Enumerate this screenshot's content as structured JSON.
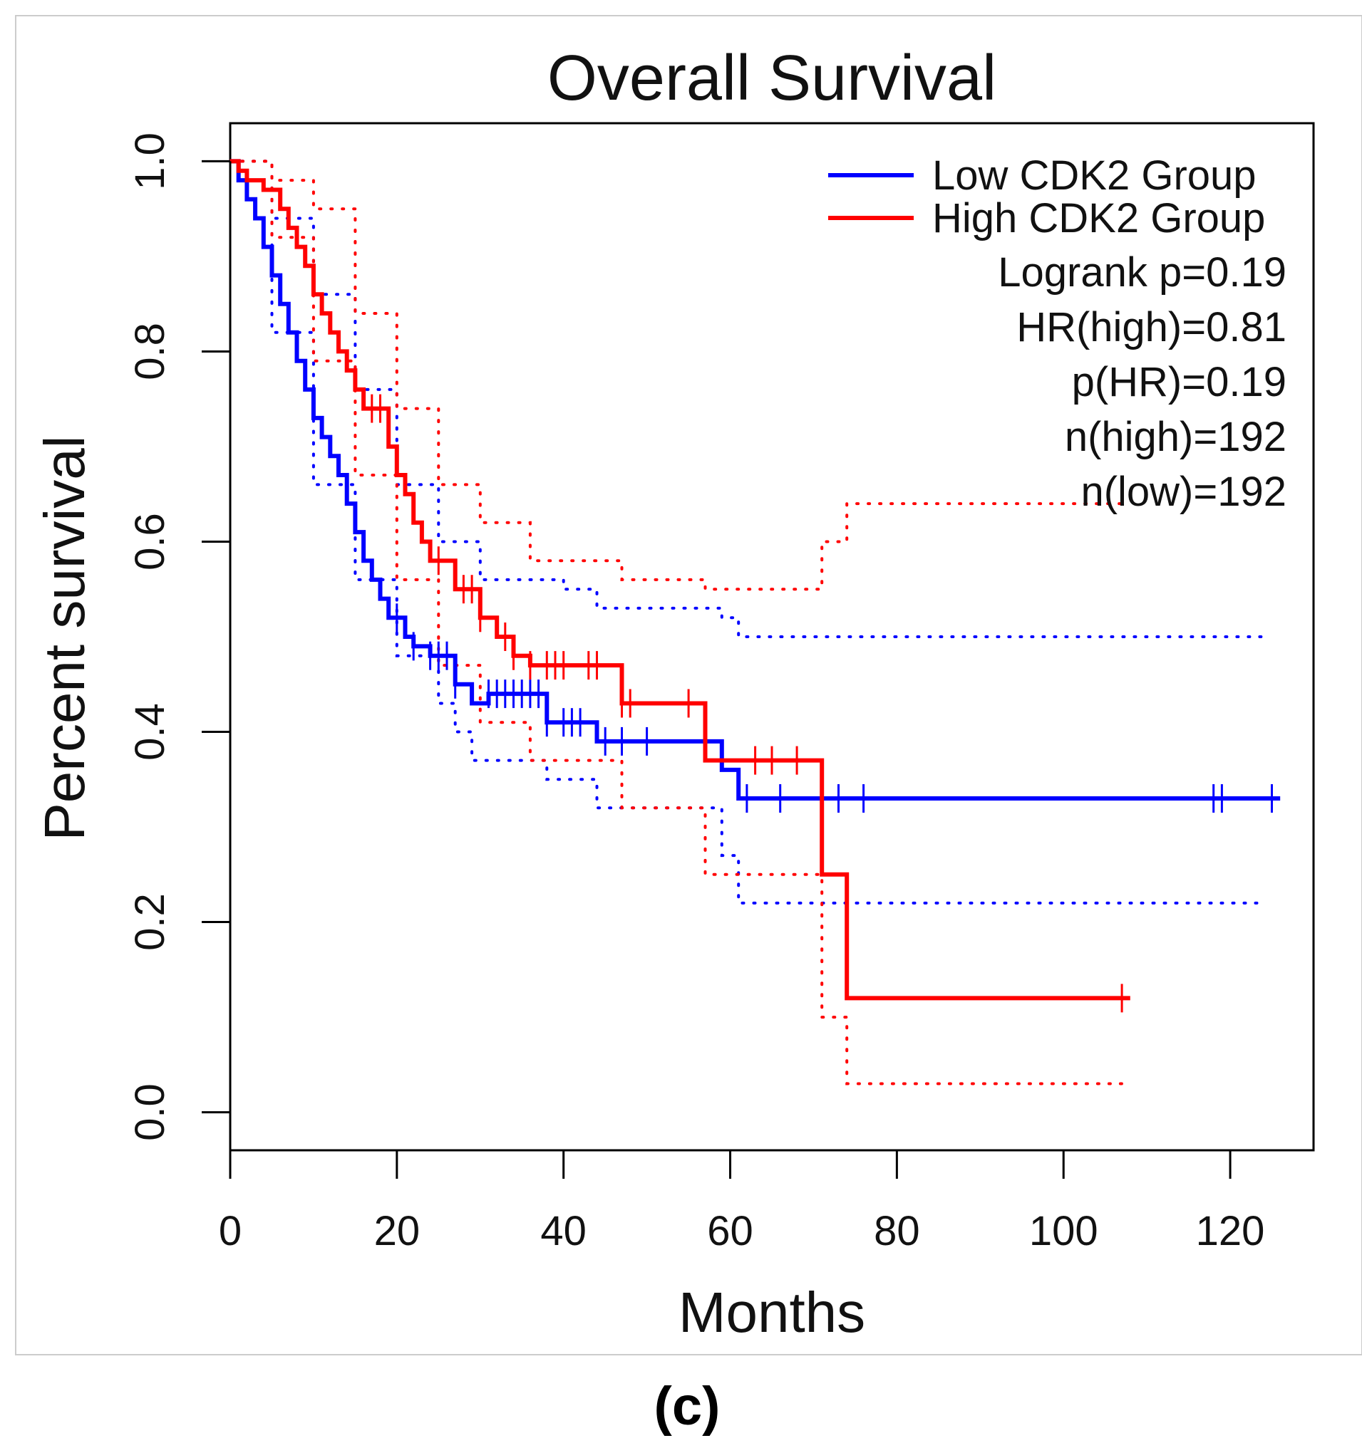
{
  "chart_data": {
    "type": "line",
    "subtype": "kaplan-meier",
    "title": "Overall Survival",
    "xlabel": "Months",
    "ylabel": "Percent survival",
    "xlim": [
      0,
      130
    ],
    "ylim": [
      -0.04,
      1.04
    ],
    "x_ticks": [
      0,
      20,
      40,
      60,
      80,
      100,
      120
    ],
    "y_ticks": [
      0.0,
      0.2,
      0.4,
      0.6,
      0.8,
      1.0
    ],
    "x_tick_labels": [
      "0",
      "20",
      "40",
      "60",
      "80",
      "100",
      "120"
    ],
    "y_tick_labels": [
      "0.0",
      "0.2",
      "0.4",
      "0.6",
      "0.8",
      "1.0"
    ],
    "legend": {
      "position": "top-right",
      "entries": [
        {
          "label": "Low CDK2 Group",
          "color": "#0000ff"
        },
        {
          "label": "High CDK2 Group",
          "color": "#ff0000"
        }
      ],
      "stats": [
        "Logrank p=0.19",
        "HR(high)=0.81",
        "p(HR)=0.19",
        "n(high)=192",
        "n(low)=192"
      ]
    },
    "series": [
      {
        "name": "Low CDK2 Group",
        "color": "#0000ff",
        "style": "solid",
        "x": [
          0,
          1,
          2,
          3,
          4,
          5,
          6,
          7,
          8,
          9,
          10,
          11,
          12,
          13,
          14,
          15,
          16,
          17,
          18,
          19,
          21,
          22,
          24,
          27,
          29,
          31,
          38,
          44,
          59,
          61,
          126
        ],
        "y": [
          1.0,
          0.98,
          0.96,
          0.94,
          0.91,
          0.88,
          0.85,
          0.82,
          0.79,
          0.76,
          0.73,
          0.71,
          0.69,
          0.67,
          0.64,
          0.61,
          0.58,
          0.56,
          0.54,
          0.52,
          0.5,
          0.49,
          0.48,
          0.45,
          0.43,
          0.44,
          0.41,
          0.39,
          0.36,
          0.33,
          0.33
        ],
        "censor_x": [
          20,
          22,
          24,
          25,
          26,
          27,
          31,
          32,
          33,
          34,
          35,
          36,
          37,
          38,
          40,
          41,
          42,
          45,
          47,
          50,
          62,
          66,
          73,
          76,
          118,
          119,
          125
        ]
      },
      {
        "name": "High CDK2 Group",
        "color": "#ff0000",
        "style": "solid",
        "x": [
          0,
          1,
          2,
          4,
          6,
          7,
          8,
          9,
          10,
          11,
          12,
          13,
          14,
          15,
          16,
          19,
          20,
          21,
          22,
          23,
          24,
          27,
          30,
          32,
          34,
          36,
          47,
          57,
          71,
          74,
          108
        ],
        "y": [
          1.0,
          0.99,
          0.98,
          0.97,
          0.95,
          0.93,
          0.91,
          0.89,
          0.86,
          0.84,
          0.82,
          0.8,
          0.78,
          0.76,
          0.74,
          0.7,
          0.67,
          0.65,
          0.62,
          0.6,
          0.58,
          0.55,
          0.52,
          0.5,
          0.48,
          0.47,
          0.43,
          0.37,
          0.25,
          0.12,
          0.12
        ],
        "censor_x": [
          17,
          18,
          25,
          28,
          29,
          30,
          33,
          34,
          36,
          38,
          39,
          40,
          43,
          44,
          47,
          48,
          55,
          63,
          65,
          68,
          107
        ]
      },
      {
        "name": "Low CDK2 Group upper CI",
        "color": "#0000ff",
        "style": "dotted",
        "x": [
          0,
          5,
          10,
          15,
          20,
          25,
          30,
          40,
          44,
          59,
          61,
          124
        ],
        "y": [
          1.0,
          0.94,
          0.86,
          0.76,
          0.66,
          0.6,
          0.56,
          0.55,
          0.53,
          0.52,
          0.5,
          0.5
        ]
      },
      {
        "name": "Low CDK2 Group lower CI",
        "color": "#0000ff",
        "style": "dotted",
        "x": [
          0,
          5,
          10,
          15,
          20,
          25,
          27,
          29,
          38,
          44,
          59,
          61,
          124
        ],
        "y": [
          1.0,
          0.82,
          0.66,
          0.56,
          0.48,
          0.43,
          0.4,
          0.37,
          0.35,
          0.32,
          0.27,
          0.22,
          0.22
        ]
      },
      {
        "name": "High CDK2 Group upper CI",
        "color": "#ff0000",
        "style": "dotted",
        "x": [
          0,
          5,
          10,
          15,
          20,
          25,
          30,
          36,
          47,
          57,
          71,
          74,
          107
        ],
        "y": [
          1.0,
          0.98,
          0.95,
          0.84,
          0.74,
          0.66,
          0.62,
          0.58,
          0.56,
          0.55,
          0.6,
          0.64,
          0.64
        ]
      },
      {
        "name": "High CDK2 Group lower CI",
        "color": "#ff0000",
        "style": "dotted",
        "x": [
          0,
          5,
          10,
          15,
          20,
          25,
          30,
          36,
          47,
          57,
          71,
          74,
          107
        ],
        "y": [
          1.0,
          0.92,
          0.79,
          0.67,
          0.56,
          0.47,
          0.41,
          0.37,
          0.32,
          0.25,
          0.1,
          0.03,
          0.03
        ]
      }
    ]
  },
  "caption": "(c)"
}
